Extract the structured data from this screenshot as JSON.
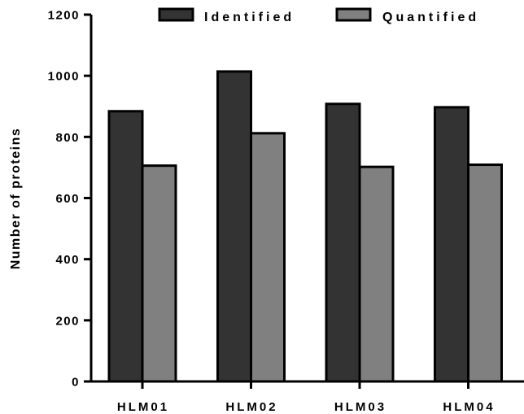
{
  "chart_data": {
    "type": "bar",
    "categories": [
      "HLM01",
      "HLM02",
      "HLM03",
      "HLM04"
    ],
    "series": [
      {
        "name": "Identified",
        "values": [
          884,
          1014,
          908,
          897
        ],
        "color": "#333333"
      },
      {
        "name": "Quantified",
        "values": [
          706,
          812,
          702,
          709
        ],
        "color": "#808080"
      }
    ],
    "xlabel": "",
    "ylabel": "Number of proteins",
    "ylim": [
      0,
      1200
    ],
    "yticks": [
      0,
      200,
      400,
      600,
      800,
      1000,
      1200
    ],
    "ytick_labels": [
      "0",
      "200",
      "400",
      "600",
      "800",
      "1000",
      "1200"
    ],
    "grid": false,
    "legend": "top"
  }
}
